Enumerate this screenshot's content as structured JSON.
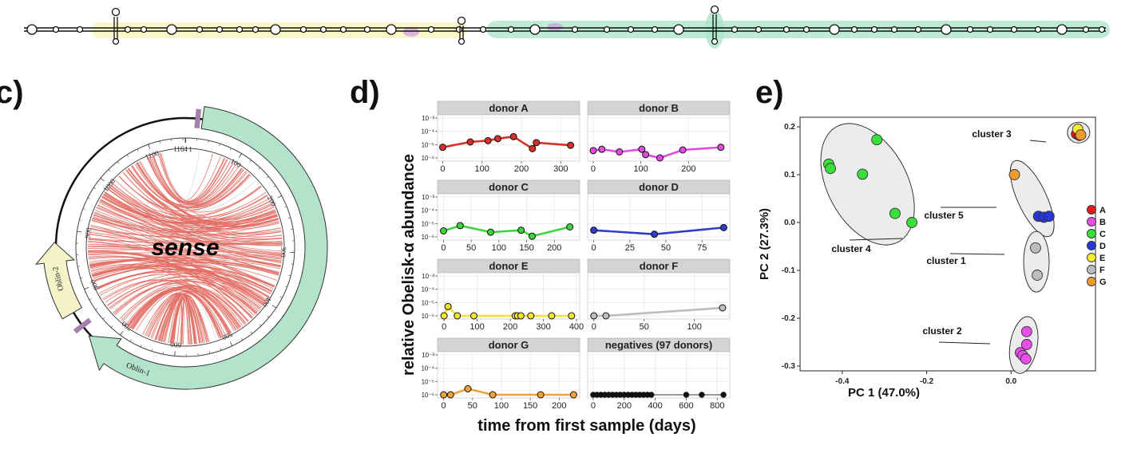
{
  "panels": {
    "c": "c)",
    "d": "d)",
    "e": "e)"
  },
  "circos": {
    "center_label": "sense",
    "total_length": 1164,
    "ring_ticks": [
      1,
      100,
      200,
      300,
      400,
      500,
      600,
      700,
      800,
      900,
      1000,
      1100,
      1164
    ],
    "genes": [
      {
        "name": "Oblin-1",
        "start": 25,
        "end": 735,
        "color": "#b3e3cb"
      },
      {
        "name": "Oblin-2",
        "start": 775,
        "end": 880,
        "color": "#f5f3c8"
      }
    ],
    "colors": {
      "chord": "#e26b62",
      "chord_minor": "#d9d9d9",
      "marker": "#c99ad6"
    }
  },
  "chart_data": [
    {
      "type": "line",
      "panel": "d",
      "xlabel": "time from first sample (days)",
      "ylabel": "relative Obelisk-α abundance",
      "y_ticks": [
        "10⁻³",
        "10⁻⁴",
        "10⁻⁵",
        "10⁻⁶"
      ],
      "log_y": true,
      "facets": [
        {
          "title": "donor A",
          "color": "#d7302a",
          "xlim": [
            -5,
            340
          ],
          "xticks": [
            0,
            100,
            200,
            300
          ],
          "x": [
            0,
            70,
            115,
            140,
            180,
            228,
            238,
            325
          ],
          "y": [
            -5.2,
            -4.8,
            -4.7,
            -4.55,
            -4.4,
            -5.3,
            -4.85,
            -5.05
          ]
        },
        {
          "title": "donor B",
          "color": "#e34ae0",
          "xlim": [
            -5,
            280
          ],
          "xticks": [
            0,
            100,
            200
          ],
          "x": [
            0,
            18,
            55,
            102,
            110,
            140,
            188,
            268
          ],
          "y": [
            -5.45,
            -5.35,
            -5.55,
            -5.35,
            -5.75,
            -6.0,
            -5.4,
            -5.2
          ]
        },
        {
          "title": "donor C",
          "color": "#3dd43d",
          "xlim": [
            -5,
            240
          ],
          "xticks": [
            0,
            50,
            100,
            150,
            200
          ],
          "x": [
            0,
            30,
            85,
            140,
            160,
            228
          ],
          "y": [
            -5.55,
            -5.15,
            -5.65,
            -5.5,
            -5.95,
            -5.25
          ]
        },
        {
          "title": "donor D",
          "color": "#2e3ec8",
          "xlim": [
            -2,
            92
          ],
          "xticks": [
            0,
            25,
            50,
            75
          ],
          "x": [
            0,
            42,
            90
          ],
          "y": [
            -5.5,
            -5.8,
            -5.3
          ]
        },
        {
          "title": "donor E",
          "color": "#f1e332",
          "xlim": [
            -10,
            400
          ],
          "xticks": [
            0,
            100,
            200,
            300,
            400
          ],
          "x": [
            0,
            12,
            40,
            90,
            215,
            222,
            232,
            262,
            325,
            385
          ],
          "y": [
            -6,
            -5.3,
            -6,
            -6,
            -6,
            -6,
            -6,
            -6,
            -6,
            -6
          ]
        },
        {
          "title": "donor F",
          "color": "#bdbdbd",
          "xlim": [
            -3,
            132
          ],
          "xticks": [
            0,
            50,
            100
          ],
          "x": [
            0,
            12,
            128
          ],
          "y": [
            -6,
            -6,
            -5.4
          ]
        },
        {
          "title": "donor G",
          "color": "#f0a437",
          "xlim": [
            -5,
            230
          ],
          "xticks": [
            0,
            50,
            100,
            150,
            200
          ],
          "x": [
            0,
            12,
            42,
            85,
            168,
            225
          ],
          "y": [
            -6,
            -6,
            -5.55,
            -6,
            -6,
            -6
          ]
        },
        {
          "title": "negatives (97 donors)",
          "color": "#999999",
          "xlim": [
            -15,
            860
          ],
          "xticks": [
            0,
            200,
            400,
            600,
            800
          ],
          "x": [
            0,
            25,
            50,
            75,
            100,
            125,
            150,
            175,
            200,
            225,
            250,
            275,
            300,
            325,
            350,
            375,
            600,
            700,
            840
          ],
          "y": [
            -6,
            -6,
            -6,
            -6,
            -6,
            -6,
            -6,
            -6,
            -6,
            -6,
            -6,
            -6,
            -6,
            -6,
            -6,
            -6,
            -6,
            -6,
            -6
          ]
        }
      ]
    },
    {
      "type": "scatter",
      "panel": "e",
      "xlabel": "PC 1 (47.0%)",
      "ylabel": "PC 2 (27.3%)",
      "xlim": [
        -0.5,
        0.2
      ],
      "ylim": [
        -0.31,
        0.22
      ],
      "xticks": [
        -0.4,
        -0.2,
        0.0
      ],
      "xtick_labels": [
        "-0.4",
        "-0.2",
        "0.0"
      ],
      "yticks": [
        0.2,
        0.1,
        0.0,
        -0.1,
        -0.2,
        -0.3
      ],
      "ytick_labels": [
        "0.2",
        "0.1",
        "0.0",
        "-0.1",
        "-0.2",
        "-0.3"
      ],
      "series": [
        {
          "name": "A",
          "color": "#e41a1c",
          "points": [
            [
              0.155,
              0.185
            ],
            [
              0.162,
              0.182
            ]
          ]
        },
        {
          "name": "B",
          "color": "#e84ee8",
          "points": [
            [
              0.037,
              -0.228
            ],
            [
              0.022,
              -0.272
            ],
            [
              0.037,
              -0.255
            ],
            [
              0.028,
              -0.278
            ],
            [
              0.035,
              -0.285
            ]
          ]
        },
        {
          "name": "C",
          "color": "#3ae03a",
          "points": [
            [
              -0.432,
              0.122
            ],
            [
              -0.428,
              0.113
            ],
            [
              -0.352,
              0.101
            ],
            [
              -0.318,
              0.173
            ],
            [
              -0.275,
              0.019
            ],
            [
              -0.235,
              0.0
            ]
          ]
        },
        {
          "name": "D",
          "color": "#2535d6",
          "points": [
            [
              0.065,
              0.013
            ],
            [
              0.078,
              0.011
            ],
            [
              0.09,
              0.013
            ]
          ]
        },
        {
          "name": "E",
          "color": "#f5ee2c",
          "points": [
            [
              0.158,
              0.195
            ]
          ]
        },
        {
          "name": "F",
          "color": "#bdbdbd",
          "points": [
            [
              0.058,
              -0.053
            ],
            [
              0.062,
              -0.11
            ]
          ]
        },
        {
          "name": "G",
          "color": "#f29a2e",
          "points": [
            [
              0.008,
              0.1
            ],
            [
              0.165,
              0.183
            ]
          ]
        }
      ],
      "clusters": [
        {
          "label": "cluster 1"
        },
        {
          "label": "cluster 2"
        },
        {
          "label": "cluster 3"
        },
        {
          "label": "cluster 4"
        },
        {
          "label": "cluster 5"
        }
      ],
      "legend_position": "right"
    }
  ]
}
